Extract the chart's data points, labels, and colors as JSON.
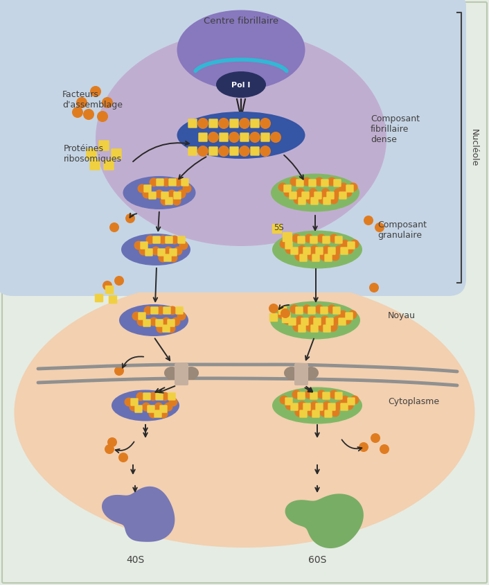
{
  "bg_color": "#e5ece3",
  "nucleole_bg": "#c5d5e5",
  "nucleolus_inner_bg": "#c0aed0",
  "nucleus_bg": "#f2d0b0",
  "orange_color": "#e07c20",
  "yellow_color": "#f0d040",
  "blue_ellipse_color": "#6870b5",
  "green_ellipse_color": "#82b865",
  "dark_blue_pol": "#283060",
  "fibrillar_center_color": "#8878be",
  "cyan_arc": "#30b8d5",
  "membrane_color": "#909090",
  "pore_color": "#9a8878",
  "subunit40_color": "#7878b5",
  "subunit60_color": "#78ad65",
  "text_color": "#404040",
  "arrow_color": "#282828",
  "labels": {
    "centre_fibrillaire": "Centre fibrillaire",
    "pol_i": "Pol I",
    "facteurs": "Facteurs\nd'assemblage",
    "proteines": "Protéines\nribosomiques",
    "composant_fibrillaire": "Composant\nfibrillaire\ndense",
    "composant_granulaire": "Composant\ngranulaire",
    "5S": "5S",
    "noyau": "Noyau",
    "cytoplasme": "Cytoplasme",
    "nucleole": "Nucléole",
    "40S": "40S",
    "60S": "60S"
  }
}
